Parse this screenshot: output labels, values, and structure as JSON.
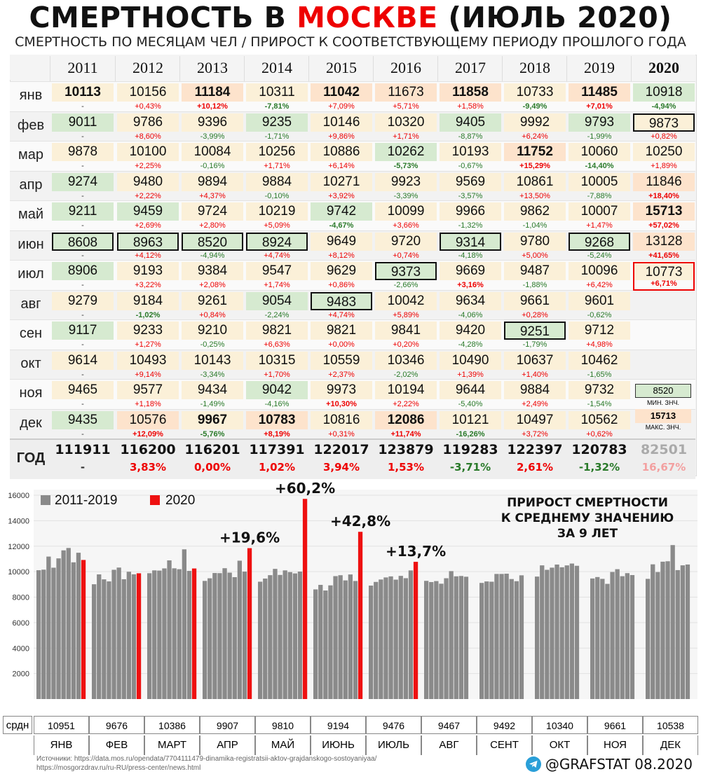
{
  "title": {
    "part1": "СМЕРТНОСТЬ В ",
    "part2": "МОСКВЕ",
    "part3": " (ИЮЛЬ 2020)"
  },
  "subtitle": "СМЕРТНОСТЬ ПО МЕСЯЦАМ ЧЕЛ / ПРИРОСТ К СООТВЕТСТВУЮЩЕМУ ПЕРИОДУ ПРОШЛОГО ГОДА",
  "colors": {
    "accent_red": "#ee1111",
    "bar_gray": "#8a8a8a",
    "green_bg": "#d6ead0",
    "orange_bg": "#fde3cc",
    "beige_bg": "#fbf0d8",
    "down_green": "#2a7a2a"
  },
  "table": {
    "years": [
      "2011",
      "2012",
      "2013",
      "2014",
      "2015",
      "2016",
      "2017",
      "2018",
      "2019",
      "2020"
    ],
    "months": [
      "янв",
      "фев",
      "мар",
      "апр",
      "май",
      "июн",
      "июл",
      "авг",
      "сен",
      "окт",
      "ноя",
      "дек"
    ],
    "values": [
      [
        "10113",
        "10156",
        "11184",
        "10311",
        "11042",
        "11673",
        "11858",
        "10733",
        "11485",
        "10918"
      ],
      [
        "9011",
        "9786",
        "9396",
        "9235",
        "10146",
        "10320",
        "9405",
        "9992",
        "9793",
        "9873"
      ],
      [
        "9878",
        "10100",
        "10084",
        "10256",
        "10886",
        "10262",
        "10193",
        "11752",
        "10060",
        "10250"
      ],
      [
        "9274",
        "9480",
        "9894",
        "9884",
        "10271",
        "9923",
        "9569",
        "10861",
        "10005",
        "11846"
      ],
      [
        "9211",
        "9459",
        "9724",
        "10219",
        "9742",
        "10099",
        "9966",
        "9862",
        "10007",
        "15713"
      ],
      [
        "8608",
        "8963",
        "8520",
        "8924",
        "9649",
        "9720",
        "9314",
        "9780",
        "9268",
        "13128"
      ],
      [
        "8906",
        "9193",
        "9384",
        "9547",
        "9629",
        "9373",
        "9669",
        "9487",
        "10096",
        "10773"
      ],
      [
        "9279",
        "9184",
        "9261",
        "9054",
        "9483",
        "10042",
        "9634",
        "9661",
        "9601",
        ""
      ],
      [
        "9117",
        "9233",
        "9210",
        "9821",
        "9821",
        "9841",
        "9420",
        "9251",
        "9712",
        ""
      ],
      [
        "9614",
        "10493",
        "10143",
        "10315",
        "10559",
        "10346",
        "10490",
        "10637",
        "10462",
        ""
      ],
      [
        "9465",
        "9577",
        "9434",
        "9042",
        "9973",
        "10194",
        "9644",
        "9884",
        "9732",
        ""
      ],
      [
        "9435",
        "10576",
        "9967",
        "10783",
        "10816",
        "12086",
        "10121",
        "10497",
        "10562",
        ""
      ]
    ],
    "changes": [
      [
        "-",
        "+0,43%",
        "+10,12%",
        "-7,81%",
        "+7,09%",
        "+5,71%",
        "+1,58%",
        "-9,49%",
        "+7,01%",
        "-4,94%"
      ],
      [
        "-",
        "+8,60%",
        "-3,99%",
        "-1,71%",
        "+9,86%",
        "+1,71%",
        "-8,87%",
        "+6,24%",
        "-1,99%",
        "+0,82%"
      ],
      [
        "-",
        "+2,25%",
        "-0,16%",
        "+1,71%",
        "+6,14%",
        "-5,73%",
        "-0,67%",
        "+15,29%",
        "-14,40%",
        "+1,89%"
      ],
      [
        "-",
        "+2,22%",
        "+4,37%",
        "-0,10%",
        "+3,92%",
        "-3,39%",
        "-3,57%",
        "+13,50%",
        "-7,88%",
        "+18,40%"
      ],
      [
        "-",
        "+2,69%",
        "+2,80%",
        "+5,09%",
        "-4,67%",
        "+3,66%",
        "-1,32%",
        "-1,04%",
        "+1,47%",
        "+57,02%"
      ],
      [
        "-",
        "+4,12%",
        "-4,94%",
        "+4,74%",
        "+8,12%",
        "+0,74%",
        "-4,18%",
        "+5,00%",
        "-5,24%",
        "+41,65%"
      ],
      [
        "-",
        "+3,22%",
        "+2,08%",
        "+1,74%",
        "+0,86%",
        "-2,66%",
        "+3,16%",
        "-1,88%",
        "+6,42%",
        "+6,71%"
      ],
      [
        "-",
        "-1,02%",
        "+0,84%",
        "-2,24%",
        "+4,74%",
        "+5,89%",
        "-4,06%",
        "+0,28%",
        "-0,62%",
        ""
      ],
      [
        "-",
        "+1,27%",
        "-0,25%",
        "+6,63%",
        "+0,00%",
        "+0,20%",
        "-4,28%",
        "-1,79%",
        "+4,98%",
        ""
      ],
      [
        "-",
        "+9,14%",
        "-3,34%",
        "+1,70%",
        "+2,37%",
        "-2,02%",
        "+1,39%",
        "+1,40%",
        "-1,65%",
        ""
      ],
      [
        "-",
        "+1,18%",
        "-1,49%",
        "-4,16%",
        "+10,30%",
        "+2,22%",
        "-5,40%",
        "+2,49%",
        "-1,54%",
        ""
      ],
      [
        "-",
        "+12,09%",
        "-5,76%",
        "+8,19%",
        "+0,31%",
        "+11,74%",
        "-16,26%",
        "+3,72%",
        "+0,62%",
        ""
      ]
    ],
    "bold_values": [
      [
        0,
        0
      ],
      [
        0,
        2
      ],
      [
        0,
        4
      ],
      [
        0,
        6
      ],
      [
        0,
        8
      ],
      [
        2,
        7
      ],
      [
        4,
        9
      ],
      [
        11,
        2
      ],
      [
        11,
        3
      ],
      [
        11,
        5
      ]
    ],
    "bold_changes": [
      [
        0,
        2
      ],
      [
        0,
        3
      ],
      [
        0,
        7
      ],
      [
        0,
        8
      ],
      [
        0,
        9
      ],
      [
        2,
        5
      ],
      [
        2,
        7
      ],
      [
        2,
        8
      ],
      [
        3,
        9
      ],
      [
        4,
        4
      ],
      [
        4,
        9
      ],
      [
        5,
        9
      ],
      [
        6,
        6
      ],
      [
        6,
        9
      ],
      [
        7,
        1
      ],
      [
        10,
        4
      ],
      [
        11,
        1
      ],
      [
        11,
        2
      ],
      [
        11,
        3
      ],
      [
        11,
        5
      ],
      [
        11,
        6
      ]
    ],
    "boxed": [
      [
        1,
        9
      ],
      [
        5,
        0
      ],
      [
        5,
        1
      ],
      [
        5,
        2
      ],
      [
        5,
        3
      ],
      [
        5,
        6
      ],
      [
        5,
        8
      ],
      [
        6,
        5
      ],
      [
        7,
        4
      ],
      [
        8,
        7
      ]
    ],
    "red_boxed": [
      [
        6,
        9
      ]
    ],
    "green_cells": [
      [
        1,
        0
      ],
      [
        3,
        0
      ],
      [
        4,
        0
      ],
      [
        4,
        1
      ],
      [
        5,
        0
      ],
      [
        5,
        1
      ],
      [
        5,
        2
      ],
      [
        5,
        3
      ],
      [
        6,
        0
      ],
      [
        7,
        3
      ],
      [
        8,
        0
      ],
      [
        10,
        3
      ],
      [
        1,
        6
      ],
      [
        2,
        5
      ],
      [
        4,
        4
      ],
      [
        5,
        6
      ],
      [
        5,
        8
      ],
      [
        6,
        5
      ],
      [
        7,
        4
      ],
      [
        8,
        7
      ],
      [
        1,
        3
      ],
      [
        0,
        9
      ],
      [
        1,
        8
      ],
      [
        11,
        0
      ]
    ],
    "orange_cells": [
      [
        0,
        5
      ],
      [
        0,
        6
      ],
      [
        0,
        8
      ],
      [
        2,
        7
      ],
      [
        4,
        9
      ],
      [
        5,
        9
      ],
      [
        11,
        5
      ],
      [
        11,
        1
      ],
      [
        11,
        3
      ],
      [
        3,
        9
      ],
      [
        0,
        2
      ],
      [
        0,
        4
      ]
    ],
    "year_label": "ГОД",
    "year_totals": [
      "111911",
      "116200",
      "116201",
      "117391",
      "122017",
      "123879",
      "119283",
      "122397",
      "120783",
      "82501"
    ],
    "year_changes": [
      "-",
      "3,83%",
      "0,00%",
      "1,02%",
      "3,94%",
      "1,53%",
      "-3,71%",
      "2,61%",
      "-1,32%",
      "16,67%"
    ],
    "min_value": "8520",
    "min_label": "МИН. ЗНЧ.",
    "max_value": "15713",
    "max_label": "МАКС. ЗНЧ."
  },
  "chart_data": {
    "type": "bar",
    "title": "ПРИРОСТ СМЕРТНОСТИ К СРЕДНЕМУ ЗНАЧЕНИЮ ЗА 9 ЛЕТ",
    "title_lines": [
      "ПРИРОСТ СМЕРТНОСТИ",
      "К СРЕДНЕМУ ЗНАЧЕНИЮ",
      "ЗА 9 ЛЕТ"
    ],
    "ylim": [
      0,
      16000
    ],
    "yticks": [
      "16000",
      "14000",
      "12000",
      "10000",
      "8000",
      "6000",
      "4000",
      "2000"
    ],
    "ytick_values": [
      16000,
      14000,
      12000,
      10000,
      8000,
      6000,
      4000,
      2000
    ],
    "series": [
      {
        "name": "2011-2019"
      },
      {
        "name": "2020"
      }
    ],
    "categories": [
      "ЯНВ",
      "ФЕВ",
      "МАРТ",
      "АПР",
      "МАЙ",
      "ИЮНЬ",
      "ИЮЛЬ",
      "АВГ",
      "СЕНТ",
      "ОКТ",
      "НОЯ",
      "ДЕК"
    ],
    "avg_label": "срдн",
    "averages": [
      "10951",
      "9676",
      "10386",
      "9907",
      "9810",
      "9194",
      "9476",
      "9467",
      "9492",
      "10340",
      "9661",
      "10538"
    ],
    "annotations": [
      {
        "month": 3,
        "text": "+19,6%"
      },
      {
        "month": 4,
        "text": "+60,2%"
      },
      {
        "month": 5,
        "text": "+42,8%"
      },
      {
        "month": 6,
        "text": "+13,7%"
      }
    ]
  },
  "footer": {
    "sources_line1": "Источники: https://data.mos.ru/opendata/7704111479-dinamika-registratsii-aktov-grajdanskogo-sostoyaniyaa/",
    "sources_line2": "https://mosgorzdrav.ru/ru-RU/press-center/news.html",
    "brand": "@GRAFSTAT 08.2020",
    "brand_icon": "telegram-icon"
  }
}
